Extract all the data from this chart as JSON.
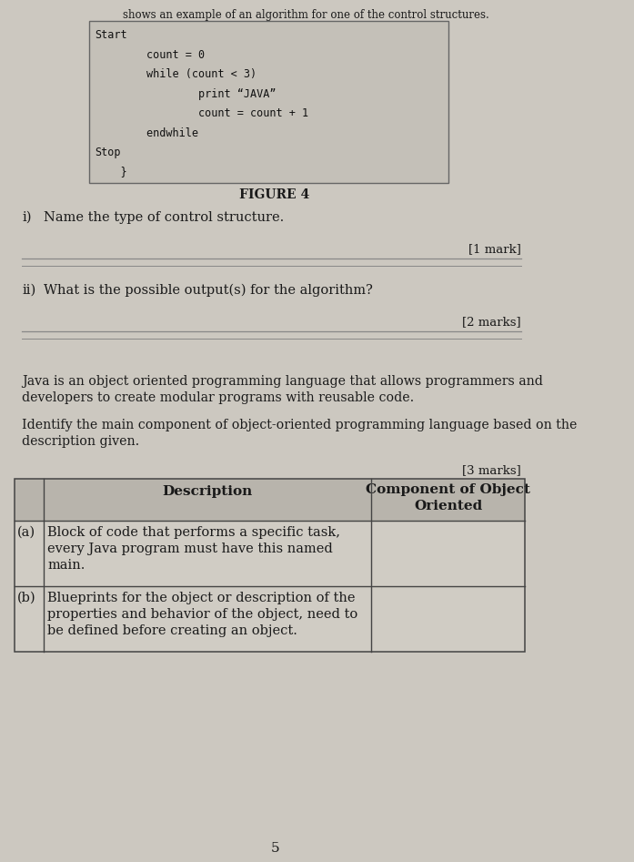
{
  "bg_color": "#b8b4ac",
  "page_bg": "#ccc8c0",
  "header_text": "shows an example of an algorithm for one of the control structures.",
  "code_lines": [
    "Start",
    "        count = 0",
    "        while (count < 3)",
    "                print “JAVA”",
    "                count = count + 1",
    "        endwhile",
    "Stop",
    "    }"
  ],
  "figure_label": "FIGURE 4",
  "q_i_label": "i)",
  "q_i_text": "Name the type of control structure.",
  "q_i_mark": "[1 mark]",
  "q_ii_label": "ii)",
  "q_ii_text": "What is the possible output(s) for the algorithm?",
  "q_ii_mark": "[2 marks]",
  "para_text1": "Java is an object oriented programming language that allows programmers and\ndevelopers to create modular programs with reusable code.",
  "para_text2": "Identify the main component of object-oriented programming language based on the\ndescription given.",
  "marks_text": "[3 marks]",
  "table_header_col1": "Description",
  "table_header_col2": "Component of Object\nOriented",
  "table_row_a_label": "(a)",
  "table_row_a_text": "Block of code that performs a specific task,\nevery Java program must have this named\nmain.",
  "table_row_b_label": "(b)",
  "table_row_b_text": "Blueprints for the object or description of the\nproperties and behavior of the object, need to\nbe defined before creating an object.",
  "page_number": "5",
  "line_color": "#888888",
  "text_color": "#1a1a1a",
  "box_bg": "#c4c0b8",
  "header_shaded": "#b8b4ac"
}
